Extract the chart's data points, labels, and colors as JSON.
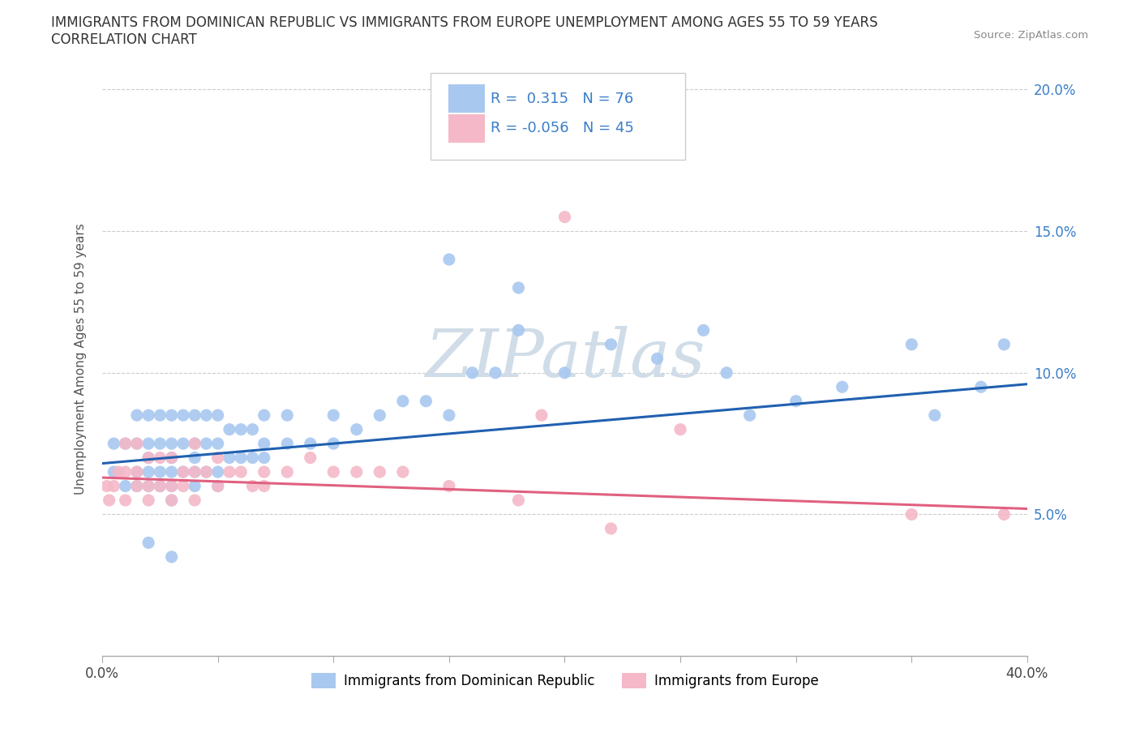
{
  "title_line1": "IMMIGRANTS FROM DOMINICAN REPUBLIC VS IMMIGRANTS FROM EUROPE UNEMPLOYMENT AMONG AGES 55 TO 59 YEARS",
  "title_line2": "CORRELATION CHART",
  "source": "Source: ZipAtlas.com",
  "ylabel": "Unemployment Among Ages 55 to 59 years",
  "legend1_label": "Immigrants from Dominican Republic",
  "legend2_label": "Immigrants from Europe",
  "r1": 0.315,
  "n1": 76,
  "r2": -0.056,
  "n2": 45,
  "blue_scatter": "#a8c8f0",
  "pink_scatter": "#f4b8c8",
  "blue_line_color": "#2060b0",
  "pink_line_color": "#e06080",
  "watermark_color": "#d0dde8",
  "blue_dots_x": [
    0.005,
    0.005,
    0.01,
    0.01,
    0.015,
    0.015,
    0.015,
    0.015,
    0.02,
    0.02,
    0.02,
    0.02,
    0.02,
    0.025,
    0.025,
    0.025,
    0.025,
    0.03,
    0.03,
    0.03,
    0.03,
    0.03,
    0.03,
    0.035,
    0.035,
    0.035,
    0.04,
    0.04,
    0.04,
    0.04,
    0.04,
    0.045,
    0.045,
    0.045,
    0.05,
    0.05,
    0.05,
    0.05,
    0.055,
    0.055,
    0.06,
    0.06,
    0.065,
    0.065,
    0.07,
    0.07,
    0.07,
    0.08,
    0.08,
    0.09,
    0.1,
    0.1,
    0.11,
    0.12,
    0.13,
    0.14,
    0.15,
    0.16,
    0.17,
    0.18,
    0.2,
    0.22,
    0.24,
    0.26,
    0.27,
    0.28,
    0.3,
    0.32,
    0.35,
    0.36,
    0.38,
    0.39,
    0.15,
    0.18,
    0.02,
    0.03
  ],
  "blue_dots_y": [
    0.065,
    0.075,
    0.06,
    0.075,
    0.06,
    0.065,
    0.075,
    0.085,
    0.06,
    0.065,
    0.07,
    0.075,
    0.085,
    0.06,
    0.065,
    0.075,
    0.085,
    0.055,
    0.06,
    0.065,
    0.07,
    0.075,
    0.085,
    0.065,
    0.075,
    0.085,
    0.06,
    0.065,
    0.07,
    0.075,
    0.085,
    0.065,
    0.075,
    0.085,
    0.06,
    0.065,
    0.075,
    0.085,
    0.07,
    0.08,
    0.07,
    0.08,
    0.07,
    0.08,
    0.07,
    0.075,
    0.085,
    0.075,
    0.085,
    0.075,
    0.085,
    0.075,
    0.08,
    0.085,
    0.09,
    0.09,
    0.085,
    0.1,
    0.1,
    0.115,
    0.1,
    0.11,
    0.105,
    0.115,
    0.1,
    0.085,
    0.09,
    0.095,
    0.11,
    0.085,
    0.095,
    0.11,
    0.14,
    0.13,
    0.04,
    0.035
  ],
  "pink_dots_x": [
    0.002,
    0.003,
    0.005,
    0.007,
    0.01,
    0.01,
    0.01,
    0.015,
    0.015,
    0.015,
    0.02,
    0.02,
    0.02,
    0.025,
    0.025,
    0.03,
    0.03,
    0.03,
    0.035,
    0.035,
    0.04,
    0.04,
    0.04,
    0.045,
    0.05,
    0.05,
    0.055,
    0.06,
    0.065,
    0.07,
    0.07,
    0.08,
    0.09,
    0.1,
    0.11,
    0.12,
    0.13,
    0.15,
    0.18,
    0.19,
    0.2,
    0.22,
    0.25,
    0.35,
    0.39
  ],
  "pink_dots_y": [
    0.06,
    0.055,
    0.06,
    0.065,
    0.055,
    0.065,
    0.075,
    0.06,
    0.065,
    0.075,
    0.055,
    0.06,
    0.07,
    0.06,
    0.07,
    0.055,
    0.06,
    0.07,
    0.06,
    0.065,
    0.055,
    0.065,
    0.075,
    0.065,
    0.06,
    0.07,
    0.065,
    0.065,
    0.06,
    0.06,
    0.065,
    0.065,
    0.07,
    0.065,
    0.065,
    0.065,
    0.065,
    0.06,
    0.055,
    0.085,
    0.155,
    0.045,
    0.08,
    0.05,
    0.05
  ],
  "xmin": 0.0,
  "xmax": 0.4,
  "ymin": 0.0,
  "ymax": 0.21,
  "yticks": [
    0.05,
    0.1,
    0.15,
    0.2
  ],
  "ytick_labels": [
    "5.0%",
    "10.0%",
    "15.0%",
    "20.0%"
  ],
  "xticks": [
    0.0,
    0.05,
    0.1,
    0.15,
    0.2,
    0.25,
    0.3,
    0.35,
    0.4
  ],
  "blue_trend_y0": 0.068,
  "blue_trend_y1": 0.096,
  "pink_trend_y0": 0.063,
  "pink_trend_y1": 0.052
}
